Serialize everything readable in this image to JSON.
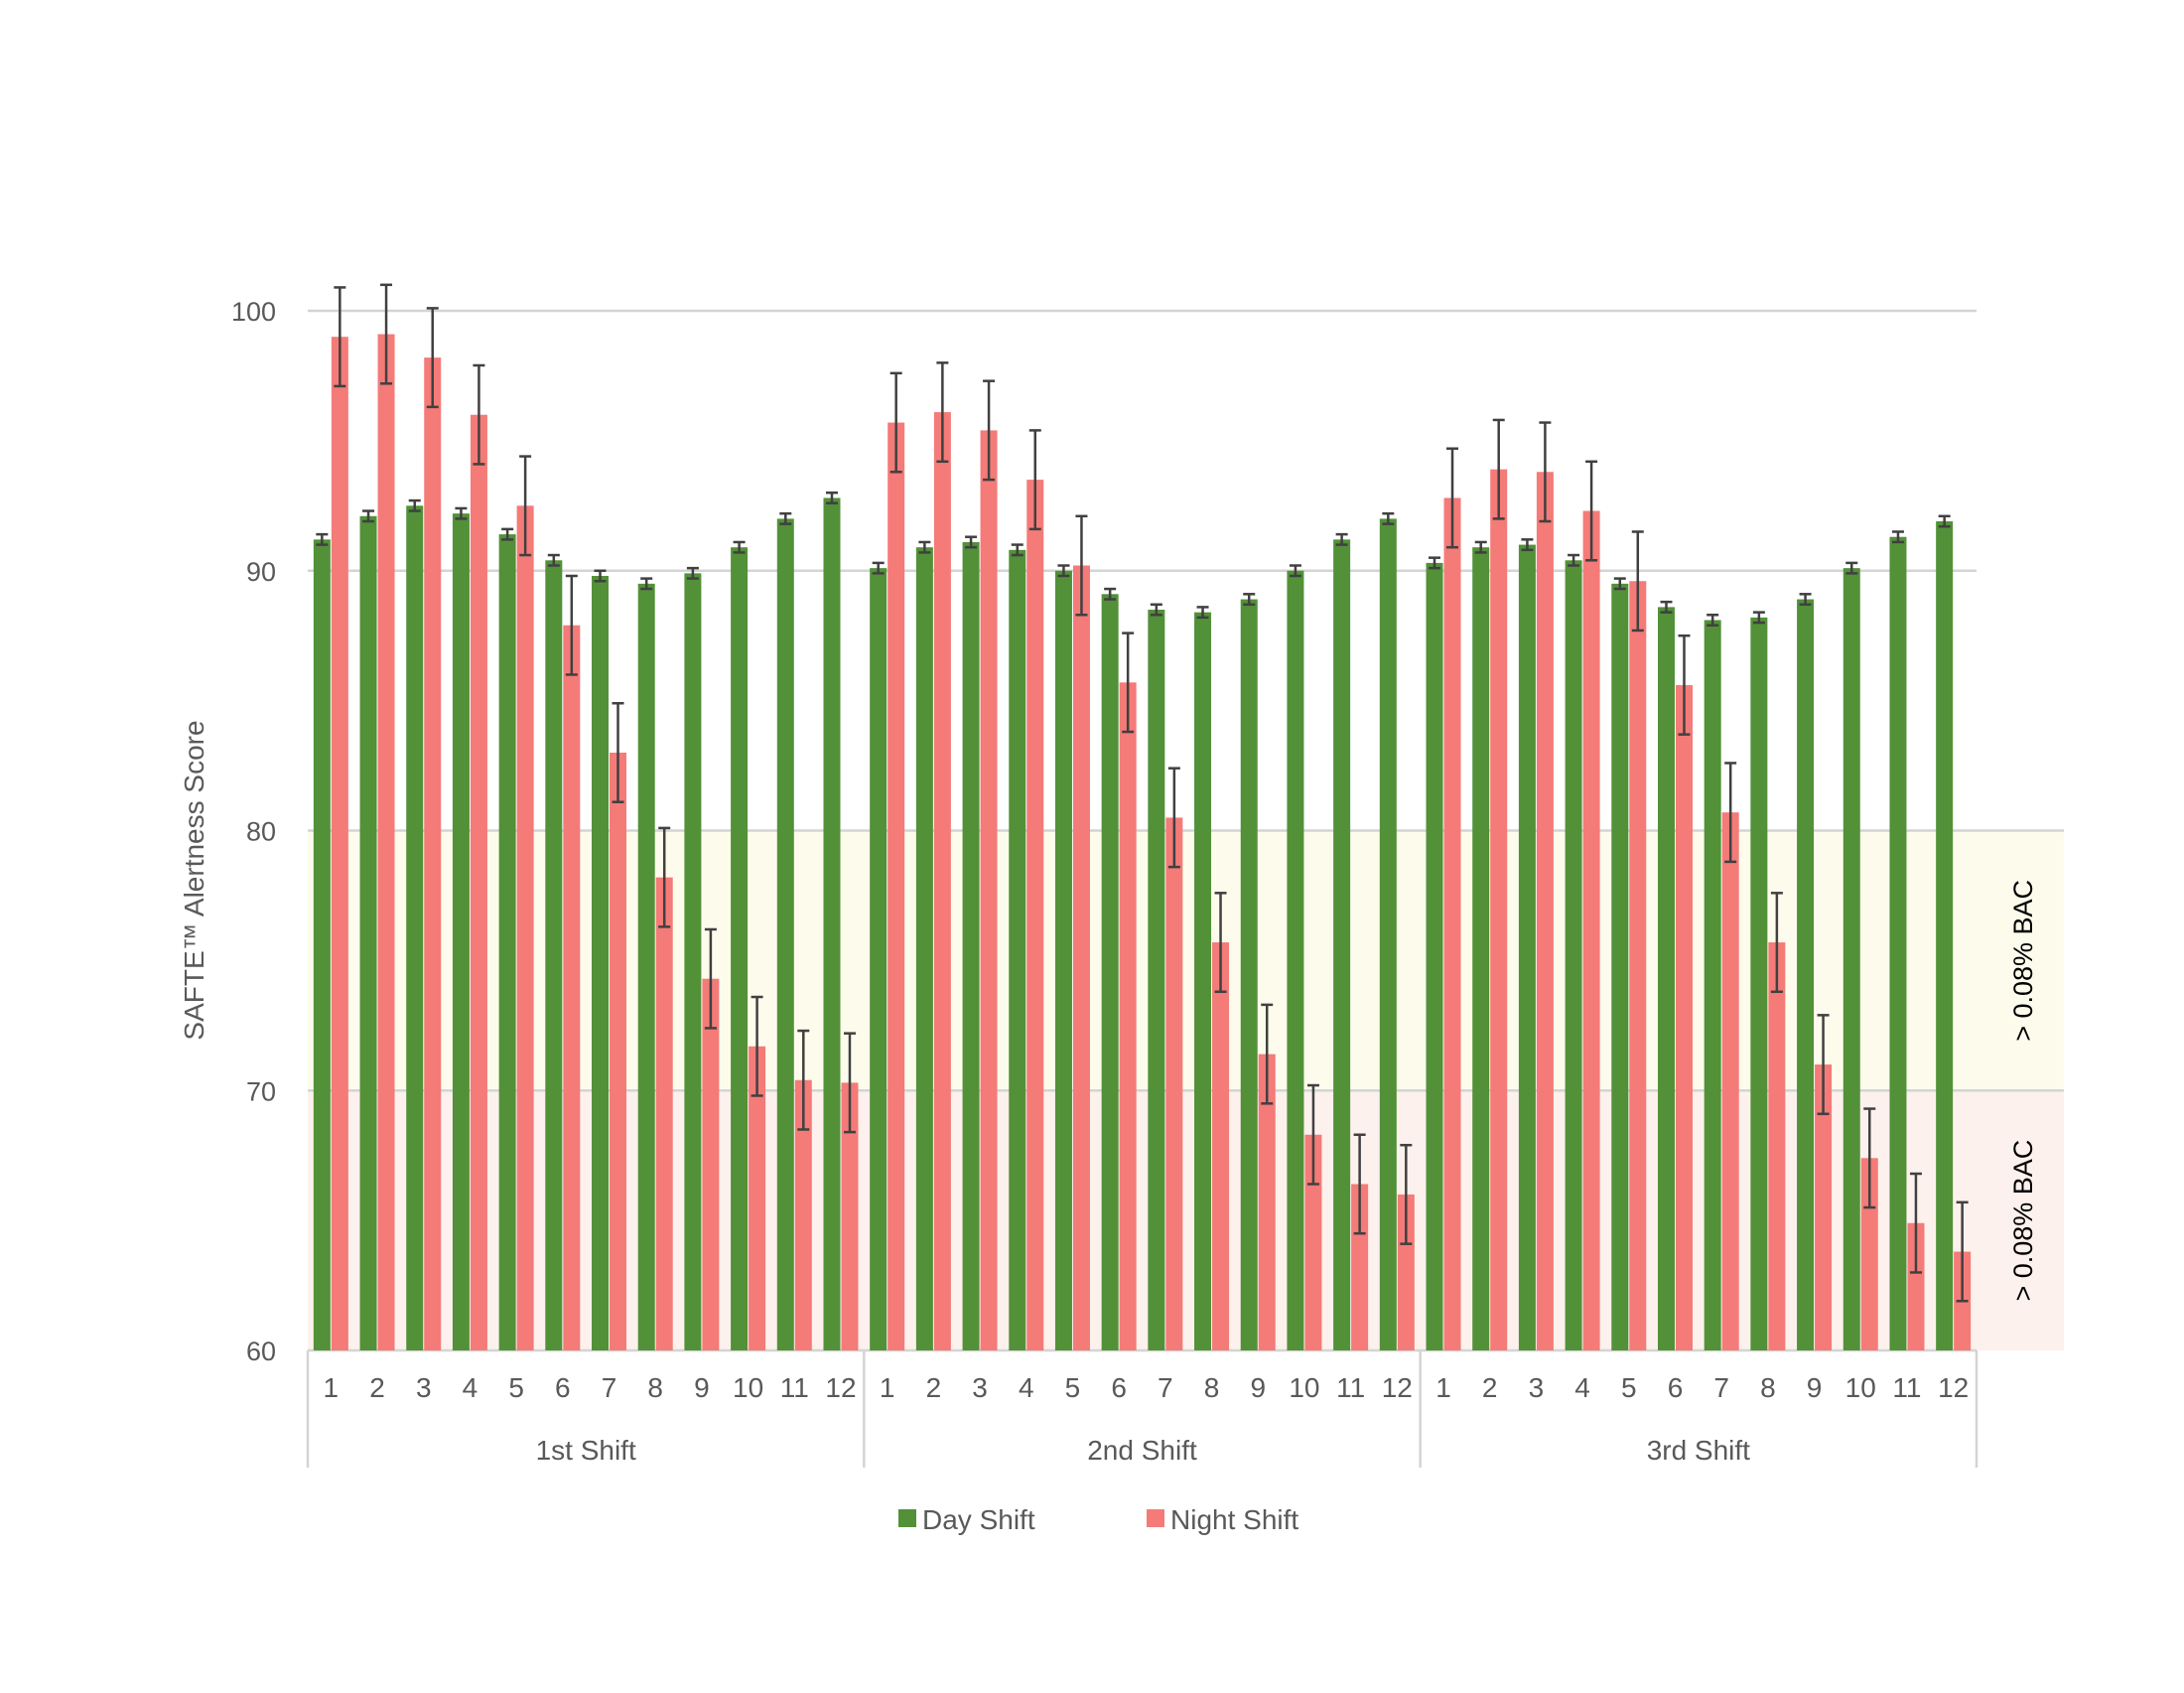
{
  "chart_data": {
    "type": "bar",
    "title": "",
    "xlabel": "",
    "ylabel": "SAFTE™ Alertness Score",
    "ylim": [
      60,
      100
    ],
    "yticks": [
      60,
      70,
      80,
      90,
      100
    ],
    "grid": true,
    "legend_position": "bottom",
    "groups": [
      "1st Shift",
      "2nd Shift",
      "3rd Shift"
    ],
    "categories": [
      "1",
      "2",
      "3",
      "4",
      "5",
      "6",
      "7",
      "8",
      "9",
      "10",
      "11",
      "12"
    ],
    "series": [
      {
        "name": "Day Shift",
        "color": "#529138",
        "values": [
          [
            91.2,
            92.1,
            92.5,
            92.2,
            91.4,
            90.4,
            89.8,
            89.5,
            89.9,
            90.9,
            92.0,
            92.8
          ],
          [
            90.1,
            90.9,
            91.1,
            90.8,
            90.0,
            89.1,
            88.5,
            88.4,
            88.9,
            90.0,
            91.2,
            92.0
          ],
          [
            90.3,
            90.9,
            91.0,
            90.4,
            89.5,
            88.6,
            88.1,
            88.2,
            88.9,
            90.1,
            91.3,
            91.9
          ]
        ],
        "error": 0.2
      },
      {
        "name": "Night Shift",
        "color": "#f47b78",
        "values": [
          [
            99.0,
            99.1,
            98.2,
            96.0,
            92.5,
            87.9,
            83.0,
            78.2,
            74.3,
            71.7,
            70.4,
            70.3
          ],
          [
            95.7,
            96.1,
            95.4,
            93.5,
            90.2,
            85.7,
            80.5,
            75.7,
            71.4,
            68.3,
            66.4,
            66.0
          ],
          [
            92.8,
            93.9,
            93.8,
            92.3,
            89.6,
            85.6,
            80.7,
            75.7,
            71.0,
            67.4,
            64.9,
            63.8
          ]
        ],
        "error": 1.9
      }
    ],
    "bands": [
      {
        "from": 70,
        "to": 80,
        "label": "> 0.08% BAC",
        "color": "#fdfcec"
      },
      {
        "from": 60,
        "to": 70,
        "label": "> 0.08% BAC",
        "color": "#fdf1ed"
      }
    ]
  }
}
